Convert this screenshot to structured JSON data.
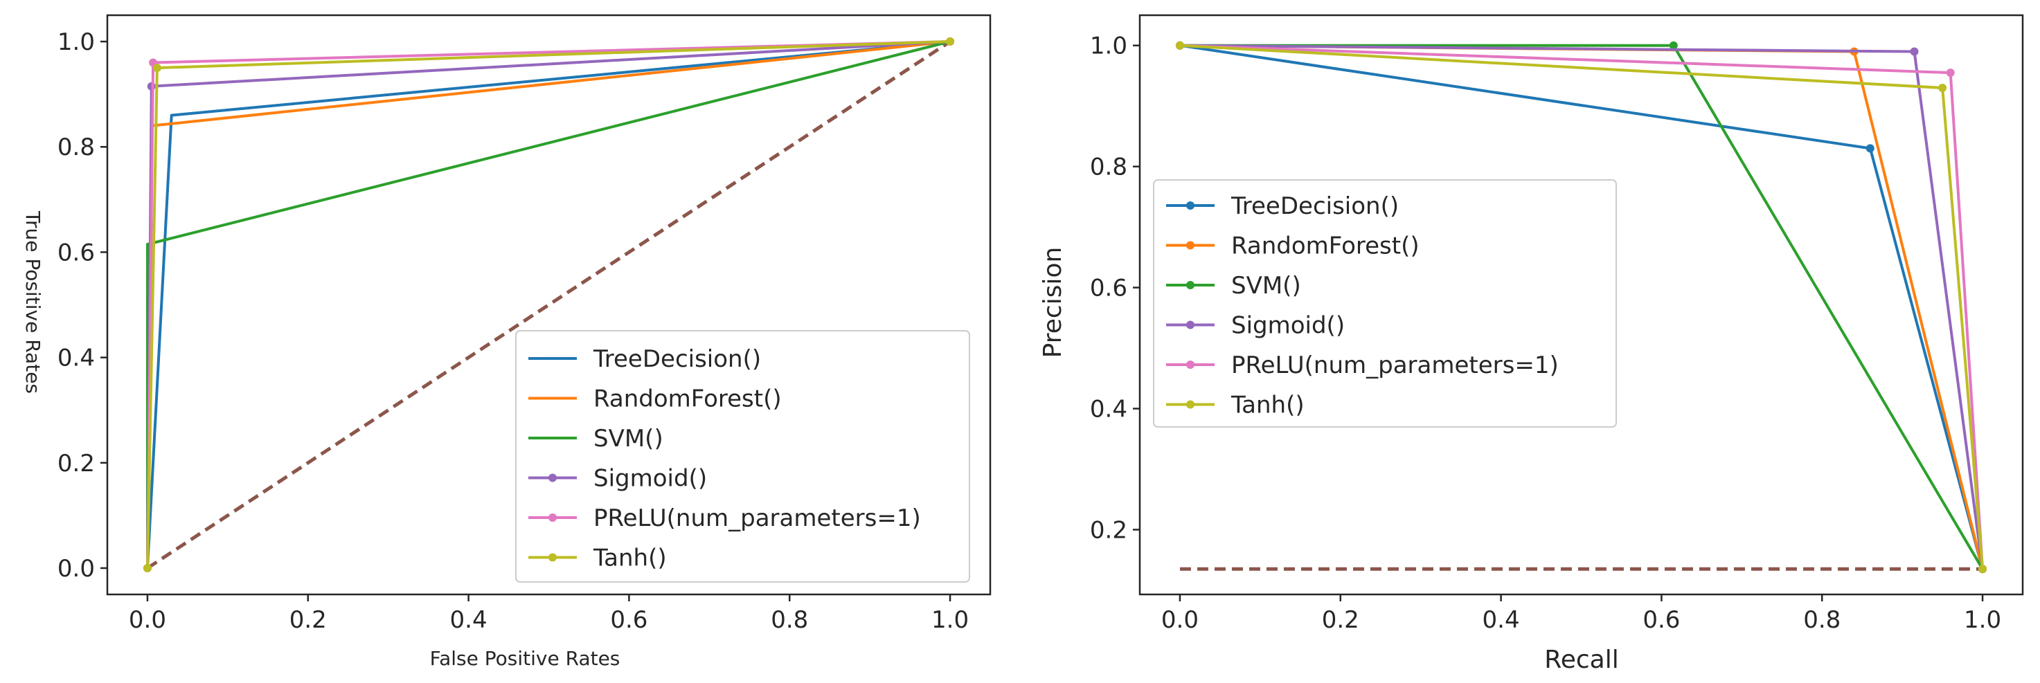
{
  "chart_data": [
    {
      "type": "line",
      "title": "",
      "xlabel": "False Positive Rates",
      "ylabel": "True Positive Rates",
      "xlim": [
        -0.05,
        1.05
      ],
      "ylim": [
        -0.05,
        1.05
      ],
      "xticks": [
        "0.0",
        "0.2",
        "0.4",
        "0.6",
        "0.8",
        "1.0"
      ],
      "yticks": [
        "0.0",
        "0.2",
        "0.4",
        "0.6",
        "0.8",
        "1.0"
      ],
      "grid": false,
      "legend_position": "lower-right",
      "series": [
        {
          "name": "TreeDecision()",
          "color": "#1f77b4",
          "markers": false,
          "x": [
            0.0,
            0.03,
            1.0
          ],
          "y": [
            0.0,
            0.86,
            1.0
          ]
        },
        {
          "name": "RandomForest()",
          "color": "#ff7f0e",
          "markers": false,
          "x": [
            0.0,
            0.005,
            1.0
          ],
          "y": [
            0.0,
            0.84,
            1.0
          ]
        },
        {
          "name": "SVM()",
          "color": "#2ca02c",
          "markers": false,
          "x": [
            0.0,
            0.0,
            1.0
          ],
          "y": [
            0.0,
            0.615,
            1.0
          ]
        },
        {
          "name": "Sigmoid()",
          "color": "#9467bd",
          "markers": true,
          "x": [
            0.0,
            0.005,
            1.0
          ],
          "y": [
            0.0,
            0.915,
            1.0
          ]
        },
        {
          "name": "PReLU(num_parameters=1)",
          "color": "#e377c2",
          "markers": true,
          "x": [
            0.0,
            0.007,
            1.0
          ],
          "y": [
            0.0,
            0.96,
            1.0
          ]
        },
        {
          "name": "Tanh()",
          "color": "#bcbd22",
          "markers": true,
          "x": [
            0.0,
            0.012,
            1.0
          ],
          "y": [
            0.0,
            0.95,
            1.0
          ]
        }
      ],
      "baseline": {
        "color": "#8c564b",
        "x": [
          0.0,
          1.0
        ],
        "y": [
          0.0,
          1.0
        ]
      }
    },
    {
      "type": "line",
      "title": "",
      "xlabel": "Recall",
      "ylabel": "Precision",
      "xlim": [
        -0.05,
        1.05
      ],
      "ylim": [
        0.093,
        1.05
      ],
      "xticks": [
        "0.0",
        "0.2",
        "0.4",
        "0.6",
        "0.8",
        "1.0"
      ],
      "yticks": [
        "0.2",
        "0.4",
        "0.6",
        "0.8",
        "1.0"
      ],
      "ytick_values": [
        0.2,
        0.4,
        0.6,
        0.8,
        1.0
      ],
      "grid": false,
      "legend_position": "center-left",
      "series": [
        {
          "name": "TreeDecision()",
          "color": "#1f77b4",
          "markers": true,
          "x": [
            0.0,
            0.86,
            1.0
          ],
          "y": [
            1.0,
            0.83,
            0.135
          ]
        },
        {
          "name": "RandomForest()",
          "color": "#ff7f0e",
          "markers": true,
          "x": [
            0.0,
            0.84,
            1.0
          ],
          "y": [
            1.0,
            0.99,
            0.135
          ]
        },
        {
          "name": "SVM()",
          "color": "#2ca02c",
          "markers": true,
          "x": [
            0.0,
            0.615,
            1.0
          ],
          "y": [
            1.0,
            1.0,
            0.135
          ]
        },
        {
          "name": "Sigmoid()",
          "color": "#9467bd",
          "markers": true,
          "x": [
            0.0,
            0.915,
            1.0
          ],
          "y": [
            1.0,
            0.99,
            0.135
          ]
        },
        {
          "name": "PReLU(num_parameters=1)",
          "color": "#e377c2",
          "markers": true,
          "x": [
            0.0,
            0.96,
            1.0
          ],
          "y": [
            1.0,
            0.955,
            0.135
          ]
        },
        {
          "name": "Tanh()",
          "color": "#bcbd22",
          "markers": true,
          "x": [
            0.0,
            0.95,
            1.0
          ],
          "y": [
            1.0,
            0.93,
            0.135
          ]
        }
      ],
      "baseline": {
        "color": "#8c564b",
        "x": [
          0.0,
          1.0
        ],
        "y": [
          0.135,
          0.135
        ]
      }
    }
  ]
}
